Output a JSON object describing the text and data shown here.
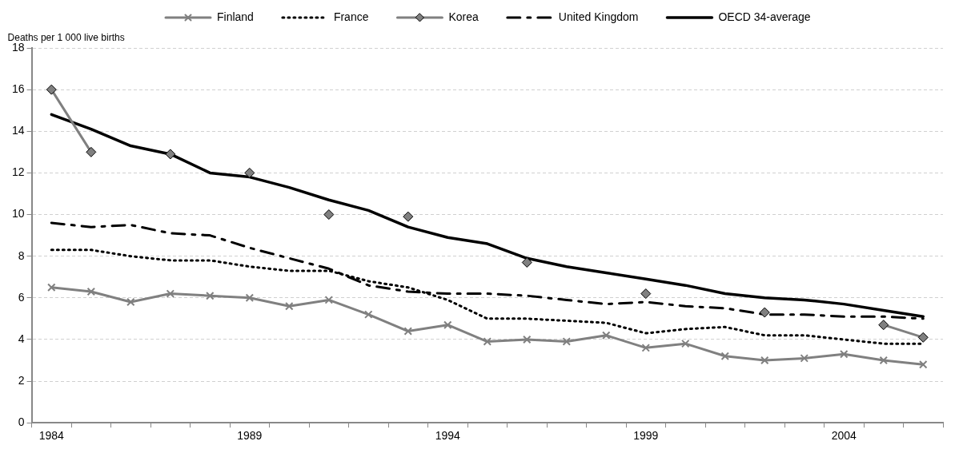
{
  "chart_data": {
    "type": "line",
    "ylabel": "Deaths per 1 000 live births",
    "categories": [
      "1984",
      null,
      null,
      null,
      null,
      "1989",
      null,
      null,
      null,
      null,
      "1994",
      null,
      null,
      null,
      null,
      "1999",
      null,
      null,
      null,
      null,
      "2004",
      null,
      null
    ],
    "ylim": [
      0,
      18
    ],
    "yticks": [
      0,
      2,
      4,
      6,
      8,
      10,
      12,
      14,
      16,
      18
    ],
    "grid": "y",
    "legend": "top",
    "series": [
      {
        "name": "Finland",
        "color": "#808080",
        "marker": "cross",
        "line_style": "solid",
        "values": [
          6.5,
          6.3,
          5.8,
          6.2,
          6.1,
          6.0,
          5.6,
          5.9,
          5.2,
          4.4,
          4.7,
          3.9,
          4.0,
          3.9,
          4.2,
          3.6,
          3.8,
          3.2,
          3.0,
          3.1,
          3.3,
          3.0,
          2.8
        ]
      },
      {
        "name": "France",
        "color": "#000000",
        "marker": "none",
        "line_style": "dotted",
        "values": [
          8.3,
          8.3,
          8.0,
          7.8,
          7.8,
          7.5,
          7.3,
          7.3,
          6.8,
          6.5,
          5.9,
          5.0,
          5.0,
          4.9,
          4.8,
          4.3,
          4.5,
          4.6,
          4.2,
          4.2,
          4.0,
          3.8,
          3.8
        ]
      },
      {
        "name": "Korea",
        "color": "#808080",
        "marker": "diamond",
        "line_style": "solid",
        "values": [
          16,
          13,
          null,
          12.9,
          null,
          12,
          null,
          10,
          null,
          9.9,
          null,
          null,
          7.7,
          null,
          null,
          6.2,
          null,
          null,
          5.3,
          null,
          null,
          4.7,
          4.1
        ]
      },
      {
        "name": "United Kingdom",
        "color": "#000000",
        "marker": "none",
        "line_style": "dashed",
        "values": [
          9.6,
          9.4,
          9.5,
          9.1,
          9.0,
          8.4,
          7.9,
          7.4,
          6.6,
          6.3,
          6.2,
          6.2,
          6.1,
          5.9,
          5.7,
          5.8,
          5.6,
          5.5,
          5.2,
          5.2,
          5.1,
          5.1,
          5.0
        ]
      },
      {
        "name": "OECD 34-average",
        "color": "#000000",
        "marker": "none",
        "line_style": "solid",
        "values": [
          14.8,
          14.1,
          13.3,
          12.9,
          12.0,
          11.8,
          11.3,
          10.7,
          10.2,
          9.4,
          8.9,
          8.6,
          7.9,
          7.5,
          7.2,
          6.9,
          6.6,
          6.2,
          6.0,
          5.9,
          5.7,
          5.4,
          5.1
        ]
      }
    ]
  }
}
